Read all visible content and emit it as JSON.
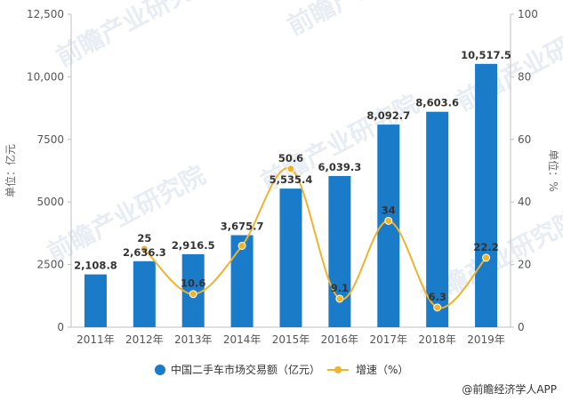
{
  "chart_data": {
    "type": "bar",
    "categories": [
      "2011年",
      "2012年",
      "2013年",
      "2014年",
      "2015年",
      "2016年",
      "2017年",
      "2018年",
      "2019年"
    ],
    "series": [
      {
        "name": "中国二手车市场交易额（亿元）",
        "type": "bar",
        "axis": "left",
        "color": "#1a7bc9",
        "values": [
          2108.8,
          2636.3,
          2916.5,
          3675.7,
          5535.4,
          6039.3,
          8092.7,
          8603.6,
          10517.5
        ],
        "labels": [
          "2,108.8",
          "2,636.3",
          "2,916.5",
          "3,675.7",
          "5,535.4",
          "6,039.3",
          "8,092.7",
          "8,603.6",
          "10,517.5"
        ]
      },
      {
        "name": "增速（%）",
        "type": "line",
        "axis": "right",
        "color": "#f0b32d",
        "values": [
          null,
          25,
          10.6,
          26.0,
          50.6,
          9.1,
          34,
          6.3,
          22.2
        ],
        "labels": [
          "",
          "25",
          "10.6",
          "",
          "50.6",
          "9.1",
          "34",
          "6.3",
          "22.2"
        ]
      }
    ],
    "y_left": {
      "label": "单位：亿元",
      "range": [
        0,
        12500
      ],
      "ticks": [
        0,
        2500,
        5000,
        7500,
        10000,
        12500
      ],
      "tick_labels": [
        "0",
        "2500",
        "5000",
        "7500",
        "10,000",
        "12,500"
      ]
    },
    "y_right": {
      "label": "单位：%",
      "range": [
        0,
        100
      ],
      "ticks": [
        0,
        20,
        40,
        60,
        80,
        100
      ],
      "tick_labels": [
        "0",
        "20",
        "40",
        "60",
        "80",
        "100"
      ]
    },
    "grid": false,
    "legend_position": "bottom"
  },
  "source": "@前瞻经济学人APP",
  "watermark": "前瞻产业研究院"
}
